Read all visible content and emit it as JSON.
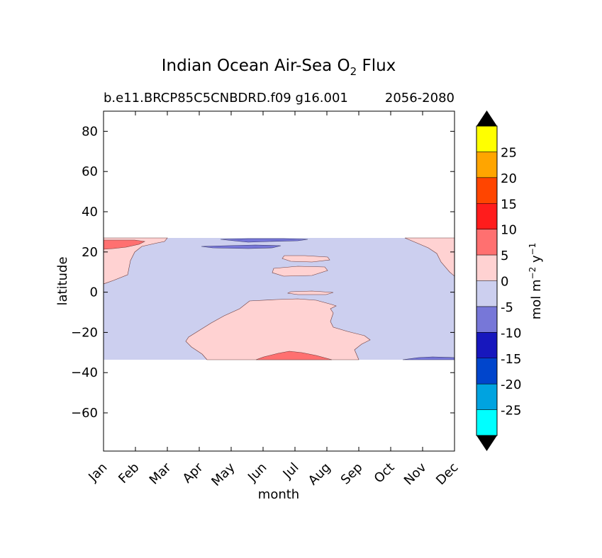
{
  "chart_data": {
    "type": "heatmap",
    "title": {
      "prefix": "Indian Ocean Air-Sea O",
      "subscript": "2",
      "suffix": " Flux"
    },
    "subtitle_left": "b.e11.BRCP85C5CNBDRD.f09 g16.001",
    "subtitle_right": "2056-2080",
    "xlabel": "month",
    "ylabel": "latitude",
    "x_categories": [
      "Jan",
      "Feb",
      "Mar",
      "Apr",
      "May",
      "Jun",
      "Jul",
      "Aug",
      "Sep",
      "Oct",
      "Nov",
      "Dec"
    ],
    "y_ticks": [
      "80",
      "60",
      "40",
      "20",
      "0",
      "−20",
      "−40",
      "−60"
    ],
    "y_tick_values": [
      80,
      60,
      40,
      20,
      0,
      -20,
      -40,
      -60
    ],
    "ylim": [
      -79,
      90
    ],
    "data_lat_range": [
      -34,
      27
    ],
    "colorbar": {
      "label": {
        "base": "mol m",
        "exp1": "−2",
        "mid": "  y",
        "exp2": "−1"
      },
      "tick_labels": [
        "25",
        "20",
        "15",
        "10",
        "5",
        "0",
        "-5",
        "-10",
        "-15",
        "-20",
        "-25"
      ],
      "levels": [
        30,
        25,
        20,
        15,
        10,
        5,
        0,
        -5,
        -10,
        -15,
        -20,
        -25,
        -30
      ],
      "colors": [
        "#ffff00",
        "#ffa500",
        "#ff4500",
        "#ff1c1c",
        "#ff7070",
        "#ffd2d2",
        "#cccfef",
        "#7777d8",
        "#1717bd",
        "#0045cc",
        "#00a3e0",
        "#00ffff"
      ],
      "extend_color": "#000000"
    },
    "regions": [
      {
        "range": "0 to 5",
        "color": "#ffd2d2",
        "location": "western and eastern edges north of equator; central-southern region May-Sep"
      },
      {
        "range": "5 to 10",
        "color": "#ff7070",
        "location": "Jan-Feb near 22-25N; Jun-Jul near -32 to -34"
      },
      {
        "range": "-5 to 0",
        "color": "#cccfef",
        "location": "most of basin"
      },
      {
        "range": "-10 to -5",
        "color": "#7777d8",
        "location": "Jun-Jul near 23-26N; Nov-Dec near -33"
      }
    ]
  }
}
